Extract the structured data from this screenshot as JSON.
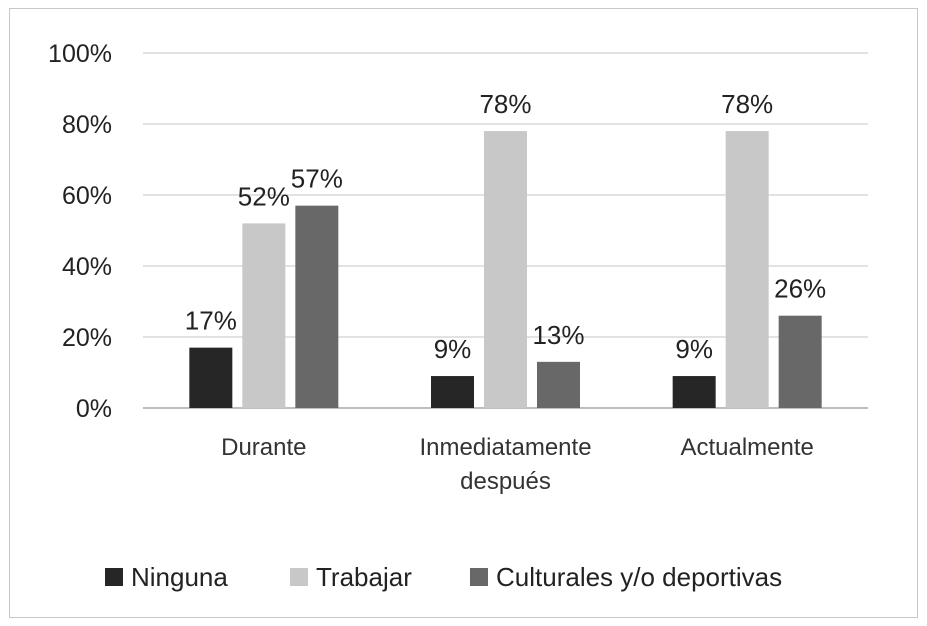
{
  "chart_data": {
    "type": "bar",
    "categories": [
      [
        "Durante"
      ],
      [
        "Inmediatamente",
        "después"
      ],
      [
        "Actualmente"
      ]
    ],
    "series": [
      {
        "name": "Ninguna",
        "values": [
          17,
          9,
          9
        ],
        "labels": [
          "17%",
          "9%",
          "9%"
        ],
        "color": "#262626"
      },
      {
        "name": "Trabajar",
        "values": [
          52,
          78,
          78
        ],
        "labels": [
          "52%",
          "78%",
          "78%"
        ],
        "color": "#c8c8c8"
      },
      {
        "name": "Culturales y/o deportivas",
        "values": [
          57,
          13,
          26
        ],
        "labels": [
          "57%",
          "13%",
          "26%"
        ],
        "color": "#686868"
      }
    ],
    "yticks": [
      "0%",
      "20%",
      "40%",
      "60%",
      "80%",
      "100%"
    ],
    "ylim": [
      0,
      100
    ],
    "grid": true,
    "legend": "bottom"
  }
}
